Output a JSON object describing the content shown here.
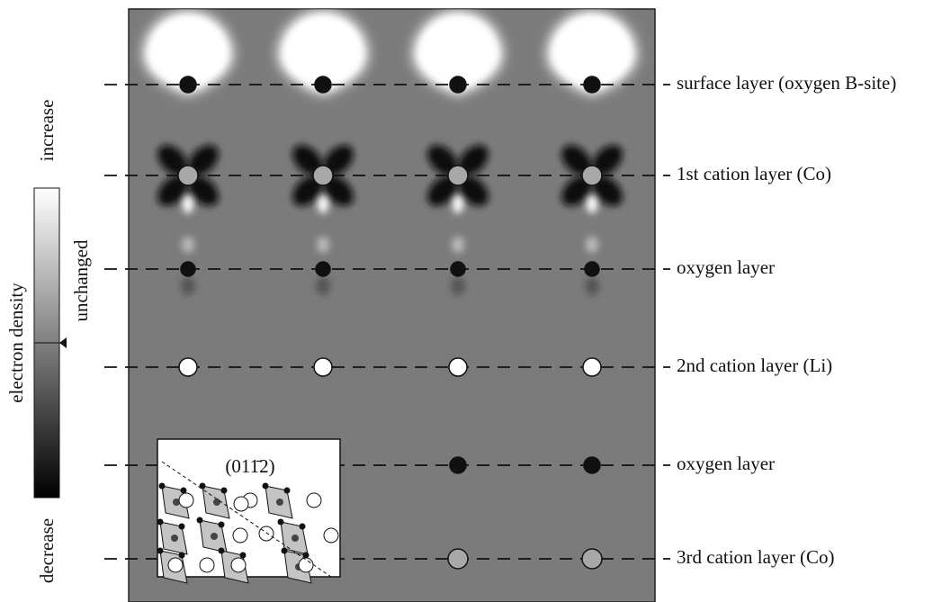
{
  "colorbar": {
    "top_label": "increase",
    "bottom_label": "decrease",
    "axis_label": "electron density",
    "middle_label": "unchanged"
  },
  "layers": [
    "surface layer (oxygen B-site)",
    "1st cation layer (Co)",
    "oxygen layer",
    "2nd cation layer (Li)",
    "oxygen layer",
    "3rd cation layer (Co)"
  ],
  "inset": {
    "label": "(011̄2)"
  }
}
